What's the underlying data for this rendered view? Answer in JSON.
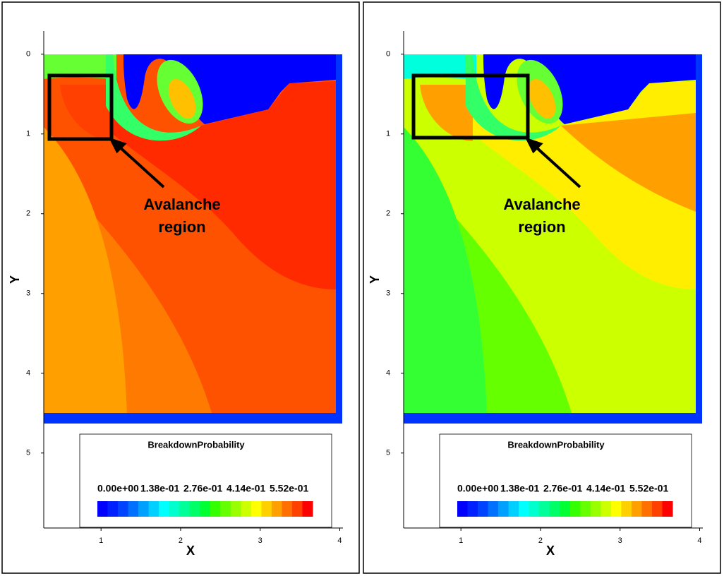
{
  "chart_data": [
    {
      "type": "heatmap",
      "xlabel": "X",
      "ylabel": "Y",
      "xlim": [
        0.28,
        4.04
      ],
      "ylim": [
        -0.29,
        5.94
      ],
      "y_inverted": true,
      "xticks": [
        1,
        2,
        3,
        4
      ],
      "yticks": [
        0,
        1,
        2,
        3,
        4,
        5
      ],
      "annotation": [
        "Avalanche",
        "region"
      ],
      "colorbar": {
        "title": "BreakdownProbability",
        "lim": [
          0,
          0.69
        ],
        "ticks": [
          {
            "value": 0,
            "label": "0.00e+00"
          },
          {
            "value": 0.138,
            "label": "1.38e-01"
          },
          {
            "value": 0.276,
            "label": "2.76e-01"
          },
          {
            "value": 0.414,
            "label": "4.14e-01"
          },
          {
            "value": 0.552,
            "label": "5.52e-01"
          }
        ],
        "colors": [
          "#0000ff",
          "#0020ff",
          "#0044ff",
          "#0070ff",
          "#00a0ff",
          "#00d0ff",
          "#00ffff",
          "#00ffcc",
          "#00ff99",
          "#00ff66",
          "#00ff33",
          "#33ff00",
          "#66ff00",
          "#99ff00",
          "#ccff00",
          "#ffff00",
          "#ffd000",
          "#ffa000",
          "#ff7000",
          "#ff4000",
          "#ff0000"
        ]
      }
    },
    {
      "type": "heatmap",
      "xlabel": "X",
      "ylabel": "Y",
      "xlim": [
        0.28,
        4.04
      ],
      "ylim": [
        -0.29,
        5.94
      ],
      "y_inverted": true,
      "xticks": [
        1,
        2,
        3,
        4
      ],
      "yticks": [
        0,
        1,
        2,
        3,
        4,
        5
      ],
      "annotation": [
        "Avalanche",
        "region"
      ],
      "colorbar": {
        "title": "BreakdownProbability",
        "lim": [
          0,
          0.69
        ],
        "ticks": [
          {
            "value": 0,
            "label": "0.00e+00"
          },
          {
            "value": 0.138,
            "label": "1.38e-01"
          },
          {
            "value": 0.276,
            "label": "2.76e-01"
          },
          {
            "value": 0.414,
            "label": "4.14e-01"
          },
          {
            "value": 0.552,
            "label": "5.52e-01"
          }
        ],
        "colors": [
          "#0000ff",
          "#0020ff",
          "#0044ff",
          "#0070ff",
          "#00a0ff",
          "#00d0ff",
          "#00ffff",
          "#00ffcc",
          "#00ff99",
          "#00ff66",
          "#00ff33",
          "#33ff00",
          "#66ff00",
          "#99ff00",
          "#ccff00",
          "#ffff00",
          "#ffd000",
          "#ffa000",
          "#ff7000",
          "#ff4000",
          "#ff0000"
        ]
      }
    }
  ]
}
